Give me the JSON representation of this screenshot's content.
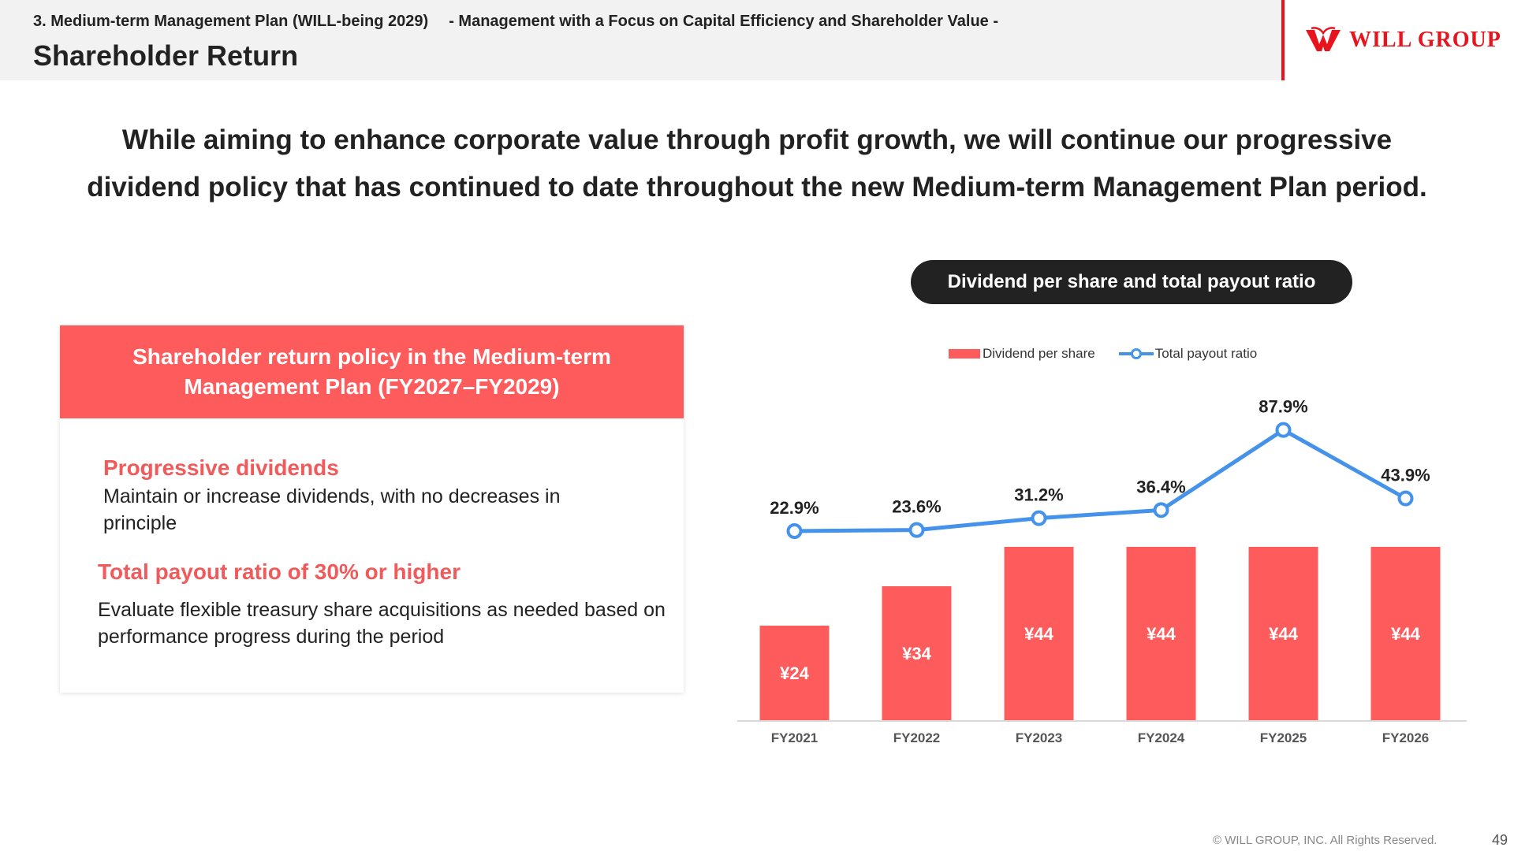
{
  "header": {
    "section": "3. Medium-term Management Plan (WILL-being 2029)",
    "subtitle": "- Management with a Focus on Capital Efficiency and Shareholder Value -",
    "title": "Shareholder Return"
  },
  "logo": {
    "text": "WILL GROUP"
  },
  "headline": {
    "line1": "While aiming to enhance corporate value through profit growth, we will continue our progressive",
    "line2": "dividend policy that has continued to date throughout the new Medium-term Management Plan period."
  },
  "policy": {
    "heading_line1": "Shareholder return policy in the Medium-term",
    "heading_line2": "Management Plan (FY2027–FY2029)",
    "item1_title": "Progressive dividends",
    "item1_desc": "Maintain or increase dividends, with no decreases in principle",
    "item2_title": "Total payout ratio of 30% or higher",
    "item2_desc": "Evaluate flexible treasury share acquisitions as needed based on performance progress during the period"
  },
  "chart_title": "Dividend per share and total payout ratio",
  "chart_data": {
    "type": "bar",
    "title": "Dividend per share and total payout ratio",
    "categories": [
      "FY2021",
      "FY2022",
      "FY2023",
      "FY2024",
      "FY2025",
      "FY2026"
    ],
    "series": [
      {
        "name": "Dividend per share",
        "type": "bar",
        "values": [
          24,
          34,
          44,
          44,
          44,
          44
        ],
        "labels": [
          "¥24",
          "¥34",
          "¥44",
          "¥44",
          "¥44",
          "¥44"
        ],
        "color": "#fe5c5c"
      },
      {
        "name": "Total payout ratio",
        "type": "line",
        "values": [
          22.9,
          23.6,
          31.2,
          36.4,
          87.9,
          43.9
        ],
        "labels": [
          "22.9%",
          "23.6%",
          "31.2%",
          "36.4%",
          "87.9%",
          "43.9%"
        ],
        "color": "#4592eb"
      }
    ],
    "legend_position": "top",
    "grid": false
  },
  "footer": {
    "copyright": "© WILL GROUP, INC. All Rights Reserved.",
    "page": "49"
  }
}
